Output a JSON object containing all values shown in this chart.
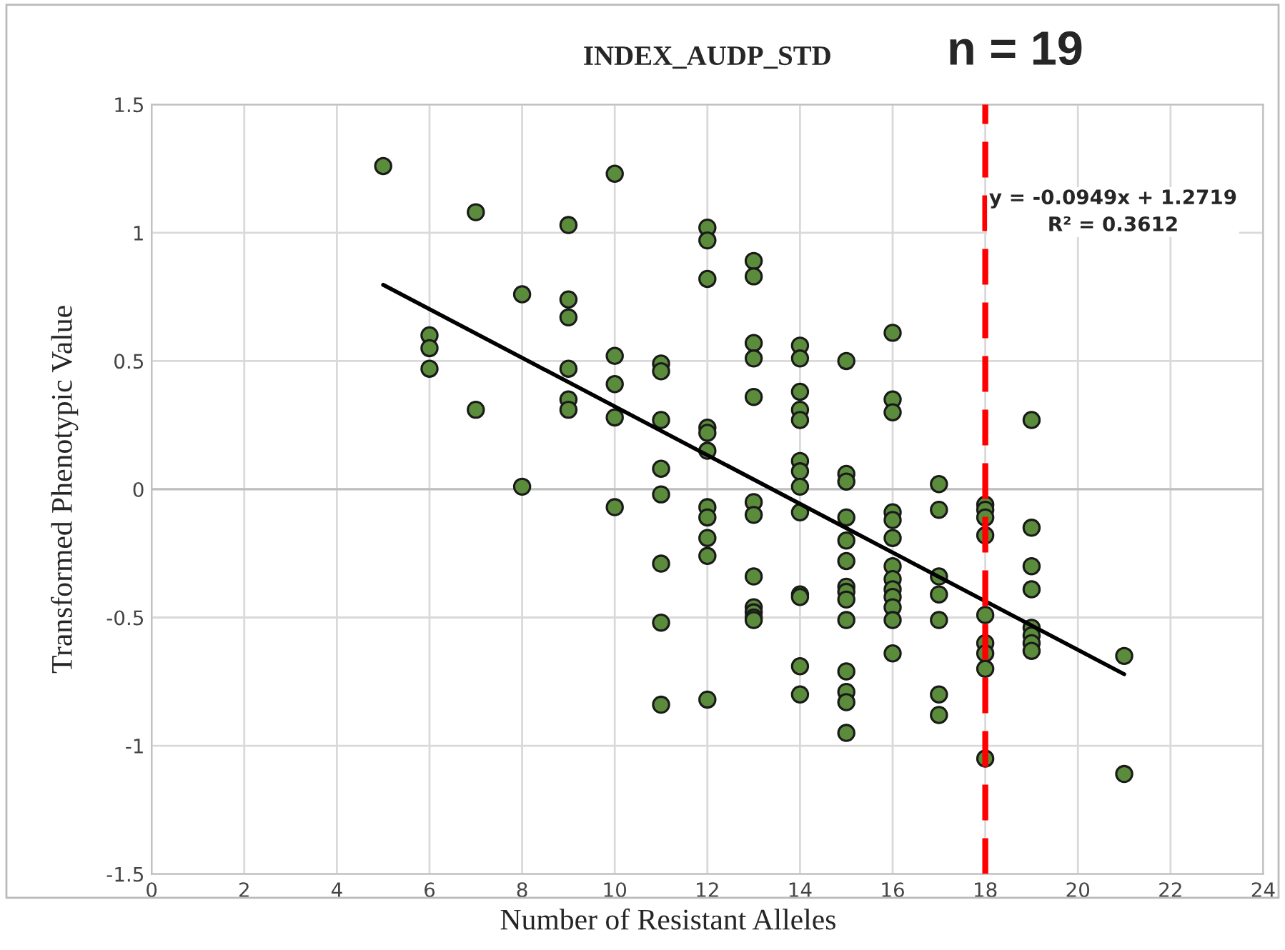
{
  "chart_data": {
    "type": "scatter",
    "title": "INDEX_AUDP_STD",
    "xlabel": "Number of Resistant Alleles",
    "ylabel": "Transformed Phenotypic Value",
    "xlim": [
      0,
      24
    ],
    "xticks": [
      0,
      2,
      4,
      6,
      8,
      10,
      12,
      14,
      16,
      18,
      20,
      22,
      24
    ],
    "ylim": [
      -1.5,
      1.5
    ],
    "yticks": [
      -1.5,
      -1,
      -0.5,
      0,
      0.5,
      1,
      1.5
    ],
    "grid": true,
    "legend": false,
    "marker": "circle",
    "series": [
      {
        "color": "#5b8c3c",
        "x": [
          5,
          6,
          6,
          6,
          7,
          7,
          8,
          8,
          9,
          9,
          9,
          9,
          9,
          9,
          10,
          10,
          10,
          10,
          10,
          11,
          11,
          11,
          11,
          11,
          11,
          11,
          11,
          12,
          12,
          12,
          12,
          12,
          12,
          12,
          12,
          12,
          12,
          12,
          13,
          13,
          13,
          13,
          13,
          13,
          13,
          13,
          13,
          13,
          13,
          13,
          14,
          14,
          14,
          14,
          14,
          14,
          14,
          14,
          14,
          14,
          14,
          14,
          14,
          15,
          15,
          15,
          15,
          15,
          15,
          15,
          15,
          15,
          15,
          15,
          15,
          15,
          15,
          16,
          16,
          16,
          16,
          16,
          16,
          16,
          16,
          16,
          16,
          16,
          16,
          16,
          17,
          17,
          17,
          17,
          17,
          17,
          17,
          18,
          18,
          18,
          18,
          18,
          18,
          18,
          18,
          18,
          19,
          19,
          19,
          19,
          19,
          19,
          19,
          19,
          21,
          21
        ],
        "values": [
          1.26,
          0.6,
          0.55,
          0.47,
          1.08,
          0.31,
          0.76,
          0.01,
          1.03,
          0.74,
          0.67,
          0.47,
          0.35,
          0.31,
          1.23,
          0.52,
          0.41,
          0.28,
          -0.07,
          0.49,
          0.46,
          0.27,
          0.08,
          -0.02,
          -0.29,
          -0.52,
          -0.84,
          1.02,
          0.97,
          0.82,
          0.24,
          0.22,
          0.15,
          -0.07,
          -0.11,
          -0.19,
          -0.26,
          -0.82,
          0.89,
          0.83,
          0.57,
          0.51,
          0.36,
          -0.05,
          -0.1,
          -0.34,
          -0.46,
          -0.48,
          -0.5,
          -0.51,
          0.56,
          0.51,
          0.38,
          0.31,
          0.27,
          0.11,
          0.07,
          0.01,
          -0.09,
          -0.41,
          -0.42,
          -0.69,
          -0.8,
          0.5,
          0.06,
          0.03,
          -0.11,
          -0.2,
          -0.28,
          -0.38,
          -0.4,
          -0.43,
          -0.51,
          -0.71,
          -0.79,
          -0.83,
          -0.95,
          0.61,
          0.35,
          0.3,
          -0.09,
          -0.12,
          -0.19,
          -0.3,
          -0.35,
          -0.39,
          -0.42,
          -0.46,
          -0.51,
          -0.64,
          0.02,
          -0.08,
          -0.34,
          -0.41,
          -0.51,
          -0.8,
          -0.88,
          -0.06,
          -0.08,
          -0.11,
          -0.18,
          -0.49,
          -0.6,
          -0.64,
          -0.7,
          -1.05,
          0.27,
          -0.15,
          -0.3,
          -0.39,
          -0.54,
          -0.57,
          -0.6,
          -0.63,
          -0.65,
          -1.11
        ]
      },
      {
        "type": "line",
        "color": "#000000",
        "marker": "none",
        "x": [
          5,
          21
        ],
        "values": [
          0.797,
          -0.721
        ]
      }
    ],
    "ref_lines": [
      {
        "axis": "x",
        "value": 18,
        "color": "#ff0000",
        "line_style": "dashed"
      }
    ],
    "annotations": [
      "n = 19",
      "y = -0.0949x + 1.2719\nR² = 0.3612"
    ]
  }
}
